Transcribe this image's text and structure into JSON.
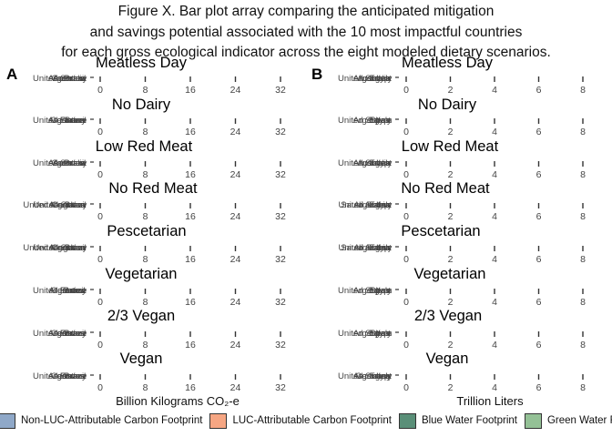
{
  "title_lines": [
    "Figure X. Bar plot array comparing the anticipated mitigation",
    "and savings potential associated with the 10 most impactful countries",
    "for each gross ecological indicator across the eight modeled dietary scenarios."
  ],
  "panels": [
    {
      "letter": "A",
      "xlabel": "Billion Kilograms CO₂-e"
    },
    {
      "letter": "B",
      "xlabel": "Trillion Liters"
    }
  ],
  "legend": [
    {
      "label": "Non-LUC-Attributable Carbon Footprint",
      "color": "#8fa8c8"
    },
    {
      "label": "LUC-Attributable Carbon Footprint",
      "color": "#f6a683"
    },
    {
      "label": "Blue Water Footprint",
      "color": "#5a8f78"
    },
    {
      "label": "Green Water Footprint",
      "color": "#94c196"
    }
  ],
  "chart_data": [
    {
      "type": "bar",
      "panel": "A",
      "orientation": "horizontal",
      "xlabel": "Billion Kilograms CO₂-e",
      "xlim": [
        0,
        32
      ],
      "xticks": [
        0,
        8,
        16,
        24,
        32
      ],
      "facets": [
        {
          "title": "Meatless Day",
          "categories": [
            "United States",
            "Argentina",
            "Brazil",
            "Australia",
            "Germany"
          ],
          "values": [
            null,
            null,
            null,
            null,
            null
          ]
        },
        {
          "title": "No Dairy",
          "categories": [
            "United States",
            "Argentina",
            "Germany",
            "Brazil",
            "France"
          ],
          "values": [
            null,
            null,
            null,
            null,
            null
          ]
        },
        {
          "title": "Low Red Meat",
          "categories": [
            "United States",
            "Argentina",
            "Brazil",
            "Australia",
            "Germany"
          ],
          "values": [
            null,
            null,
            null,
            null,
            null
          ]
        },
        {
          "title": "No Red Meat",
          "categories": [
            "United Kingdom",
            "United States",
            "Argentina",
            "Brazil",
            "Germany"
          ],
          "values": [
            null,
            null,
            null,
            null,
            null
          ]
        },
        {
          "title": "Pescetarian",
          "categories": [
            "United Kingdom",
            "United States",
            "Argentina",
            "Brazil",
            "Germany"
          ],
          "values": [
            null,
            null,
            null,
            null,
            null
          ]
        },
        {
          "title": "Vegetarian",
          "categories": [
            "United States",
            "Brazil",
            "Argentina",
            "Germany",
            "France"
          ],
          "values": [
            null,
            null,
            null,
            null,
            null
          ]
        },
        {
          "title": "2/3 Vegan",
          "categories": [
            "United States",
            "Argentina",
            "Brazil",
            "Germany",
            "France"
          ],
          "values": [
            null,
            null,
            null,
            null,
            null
          ]
        },
        {
          "title": "Vegan",
          "categories": [
            "United States",
            "Argentina",
            "Brazil",
            "Germany",
            "France"
          ],
          "values": [
            null,
            null,
            null,
            null,
            null
          ]
        }
      ]
    },
    {
      "type": "bar",
      "panel": "B",
      "orientation": "horizontal",
      "xlabel": "Trillion Liters",
      "xlim": [
        0,
        8
      ],
      "xticks": [
        0,
        2,
        4,
        6,
        8
      ],
      "facets": [
        {
          "title": "Meatless Day",
          "categories": [
            "United States",
            "Argentina",
            "Australia",
            "Egypt",
            "Italy"
          ],
          "values": [
            null,
            null,
            null,
            null,
            null
          ]
        },
        {
          "title": "No Dairy",
          "categories": [
            "United States",
            "Argentina",
            "Egypt",
            "Italy",
            "Spain"
          ],
          "values": [
            null,
            null,
            null,
            null,
            null
          ]
        },
        {
          "title": "Low Red Meat",
          "categories": [
            "United States",
            "Argentina",
            "Australia",
            "Egypt",
            "Italy"
          ],
          "values": [
            null,
            null,
            null,
            null,
            null
          ]
        },
        {
          "title": "No Red Meat",
          "categories": [
            "Saudi Arabia",
            "United States",
            "Argentina",
            "Egypt",
            "Italy"
          ],
          "values": [
            null,
            null,
            null,
            null,
            null
          ]
        },
        {
          "title": "Pescetarian",
          "categories": [
            "Saudi Arabia",
            "United States",
            "Argentina",
            "Egypt",
            "Italy"
          ],
          "values": [
            null,
            null,
            null,
            null,
            null
          ]
        },
        {
          "title": "Vegetarian",
          "categories": [
            "United States",
            "Argentina",
            "Egypt",
            "Italy",
            "Spain"
          ],
          "values": [
            null,
            null,
            null,
            null,
            null
          ]
        },
        {
          "title": "2/3 Vegan",
          "categories": [
            "United States",
            "Argentina",
            "Egypt",
            "Italy",
            "Spain"
          ],
          "values": [
            null,
            null,
            null,
            null,
            null
          ]
        },
        {
          "title": "Vegan",
          "categories": [
            "United States",
            "Argentina",
            "Germany",
            "Egypt",
            "Italy"
          ],
          "values": [
            null,
            null,
            null,
            null,
            null
          ]
        }
      ]
    }
  ]
}
